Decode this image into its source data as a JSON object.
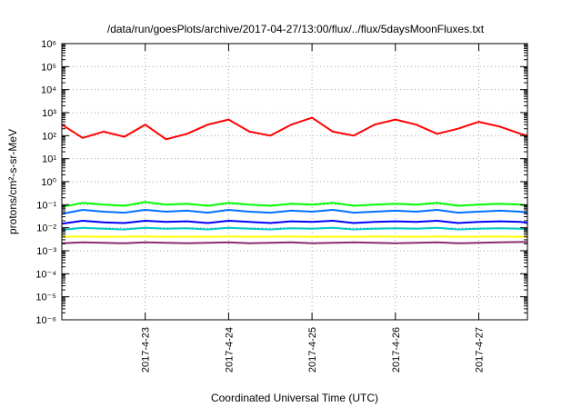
{
  "chart_data": {
    "type": "line",
    "title": "/data/run/goesPlots/archive/2017-04-27/13:00/flux/../flux/5daysMoonFluxes.txt",
    "xlabel": "Coordinated Universal Time (UTC)",
    "ylabel": "protons/cm²-s-sr-MeV",
    "yscale": "log",
    "ylim": [
      1e-06,
      1000000.0
    ],
    "y_tick_labels": [
      "10⁻⁶",
      "10⁻⁵",
      "10⁻⁴",
      "10⁻³",
      "10⁻²",
      "10⁻¹",
      "10⁰",
      "10¹",
      "10²",
      "10³",
      "10⁴",
      "10⁵",
      "10⁶"
    ],
    "xlim": [
      "2017-04-22 00:00",
      "2017-04-27 14:00"
    ],
    "x_ticks": [
      "2017-4-23",
      "2017-4-24",
      "2017-4-25",
      "2017-4-26",
      "2017-4-27"
    ],
    "grid": true,
    "legend": "none",
    "x": [
      "2017-04-22 00:00",
      "2017-04-22 06:00",
      "2017-04-22 12:00",
      "2017-04-22 18:00",
      "2017-04-23 00:00",
      "2017-04-23 06:00",
      "2017-04-23 12:00",
      "2017-04-23 18:00",
      "2017-04-24 00:00",
      "2017-04-24 06:00",
      "2017-04-24 12:00",
      "2017-04-24 18:00",
      "2017-04-25 00:00",
      "2017-04-25 06:00",
      "2017-04-25 12:00",
      "2017-04-25 18:00",
      "2017-04-26 00:00",
      "2017-04-26 06:00",
      "2017-04-26 12:00",
      "2017-04-26 18:00",
      "2017-04-27 00:00",
      "2017-04-27 06:00",
      "2017-04-27 12:00",
      "2017-04-27 14:00"
    ],
    "series": [
      {
        "color": "#ff0000",
        "values": [
          300,
          80,
          150,
          90,
          300,
          70,
          120,
          300,
          500,
          150,
          100,
          300,
          600,
          150,
          100,
          300,
          500,
          300,
          120,
          200,
          400,
          250,
          120,
          100
        ]
      },
      {
        "color": "#00ff00",
        "values": [
          0.08,
          0.12,
          0.1,
          0.09,
          0.13,
          0.1,
          0.11,
          0.09,
          0.12,
          0.1,
          0.09,
          0.11,
          0.1,
          0.12,
          0.09,
          0.1,
          0.11,
          0.1,
          0.12,
          0.09,
          0.1,
          0.11,
          0.1,
          0.09
        ]
      },
      {
        "color": "#0070ff",
        "values": [
          0.04,
          0.06,
          0.05,
          0.045,
          0.06,
          0.05,
          0.055,
          0.045,
          0.06,
          0.05,
          0.045,
          0.055,
          0.05,
          0.06,
          0.045,
          0.05,
          0.055,
          0.05,
          0.06,
          0.045,
          0.05,
          0.055,
          0.05,
          0.045
        ]
      },
      {
        "color": "#0000ff",
        "values": [
          0.015,
          0.02,
          0.017,
          0.016,
          0.02,
          0.018,
          0.019,
          0.016,
          0.02,
          0.018,
          0.016,
          0.019,
          0.018,
          0.02,
          0.016,
          0.018,
          0.019,
          0.018,
          0.02,
          0.016,
          0.018,
          0.019,
          0.018,
          0.016
        ]
      },
      {
        "color": "#00c8c8",
        "values": [
          0.008,
          0.01,
          0.009,
          0.0085,
          0.01,
          0.009,
          0.0095,
          0.0085,
          0.01,
          0.009,
          0.0085,
          0.0095,
          0.009,
          0.01,
          0.0085,
          0.009,
          0.0095,
          0.009,
          0.01,
          0.0085,
          0.009,
          0.0095,
          0.009,
          0.0085
        ]
      },
      {
        "color": "#ffff00",
        "values": [
          0.004,
          0.0042,
          0.004,
          0.0041,
          0.0042,
          0.004,
          0.0041,
          0.004,
          0.0042,
          0.004,
          0.0041,
          0.0042,
          0.004,
          0.0041,
          0.004,
          0.0042,
          0.0041,
          0.004,
          0.0042,
          0.004,
          0.0041,
          0.0042,
          0.004,
          0.0041
        ]
      },
      {
        "color": "#8b2c6b",
        "values": [
          0.0021,
          0.0023,
          0.0022,
          0.0021,
          0.0023,
          0.0022,
          0.0021,
          0.0022,
          0.0023,
          0.0021,
          0.0022,
          0.0023,
          0.0021,
          0.0022,
          0.0023,
          0.0022,
          0.0021,
          0.0022,
          0.0023,
          0.0021,
          0.0022,
          0.0023,
          0.0024,
          0.0024
        ]
      }
    ]
  }
}
